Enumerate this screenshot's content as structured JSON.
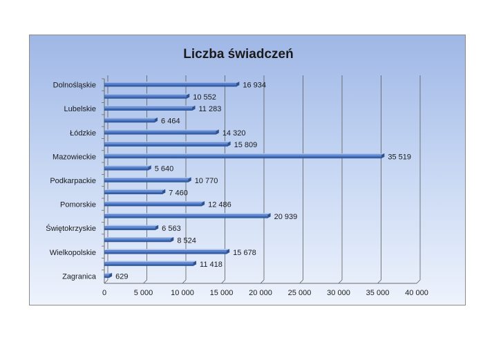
{
  "chart_data": {
    "type": "bar",
    "orientation": "horizontal",
    "title": "Liczba świadczeń",
    "categories": [
      "Dolnośląskie",
      "",
      "Lubelskie",
      "",
      "Łódzkie",
      "",
      "Mazowieckie",
      "",
      "Podkarpackie",
      "",
      "Pomorskie",
      "",
      "Świętokrzyskie",
      "",
      "Wielkopolskie",
      "",
      "Zagranica"
    ],
    "values": [
      16934,
      10552,
      11283,
      6464,
      14320,
      15809,
      35519,
      5640,
      10770,
      7460,
      12486,
      20939,
      6563,
      8524,
      15678,
      11418,
      629
    ],
    "value_labels": [
      "16 934",
      "10 552",
      "11 283",
      "6 464",
      "14 320",
      "15 809",
      "35 519",
      "5 640",
      "10 770",
      "7 460",
      "12 486",
      "20 939",
      "6 563",
      "8 524",
      "15 678",
      "11 418",
      "629"
    ],
    "xlim": [
      0,
      40000
    ],
    "x_ticks": [
      "0",
      "5 000",
      "10 000",
      "15 000",
      "20 000",
      "25 000",
      "30 000",
      "35 000",
      "40 000"
    ],
    "grid": true,
    "legend": "none",
    "colors": {
      "bar": "#4472c4",
      "bar_dark": "#2f528f",
      "grid": "#5a5a5a"
    }
  }
}
